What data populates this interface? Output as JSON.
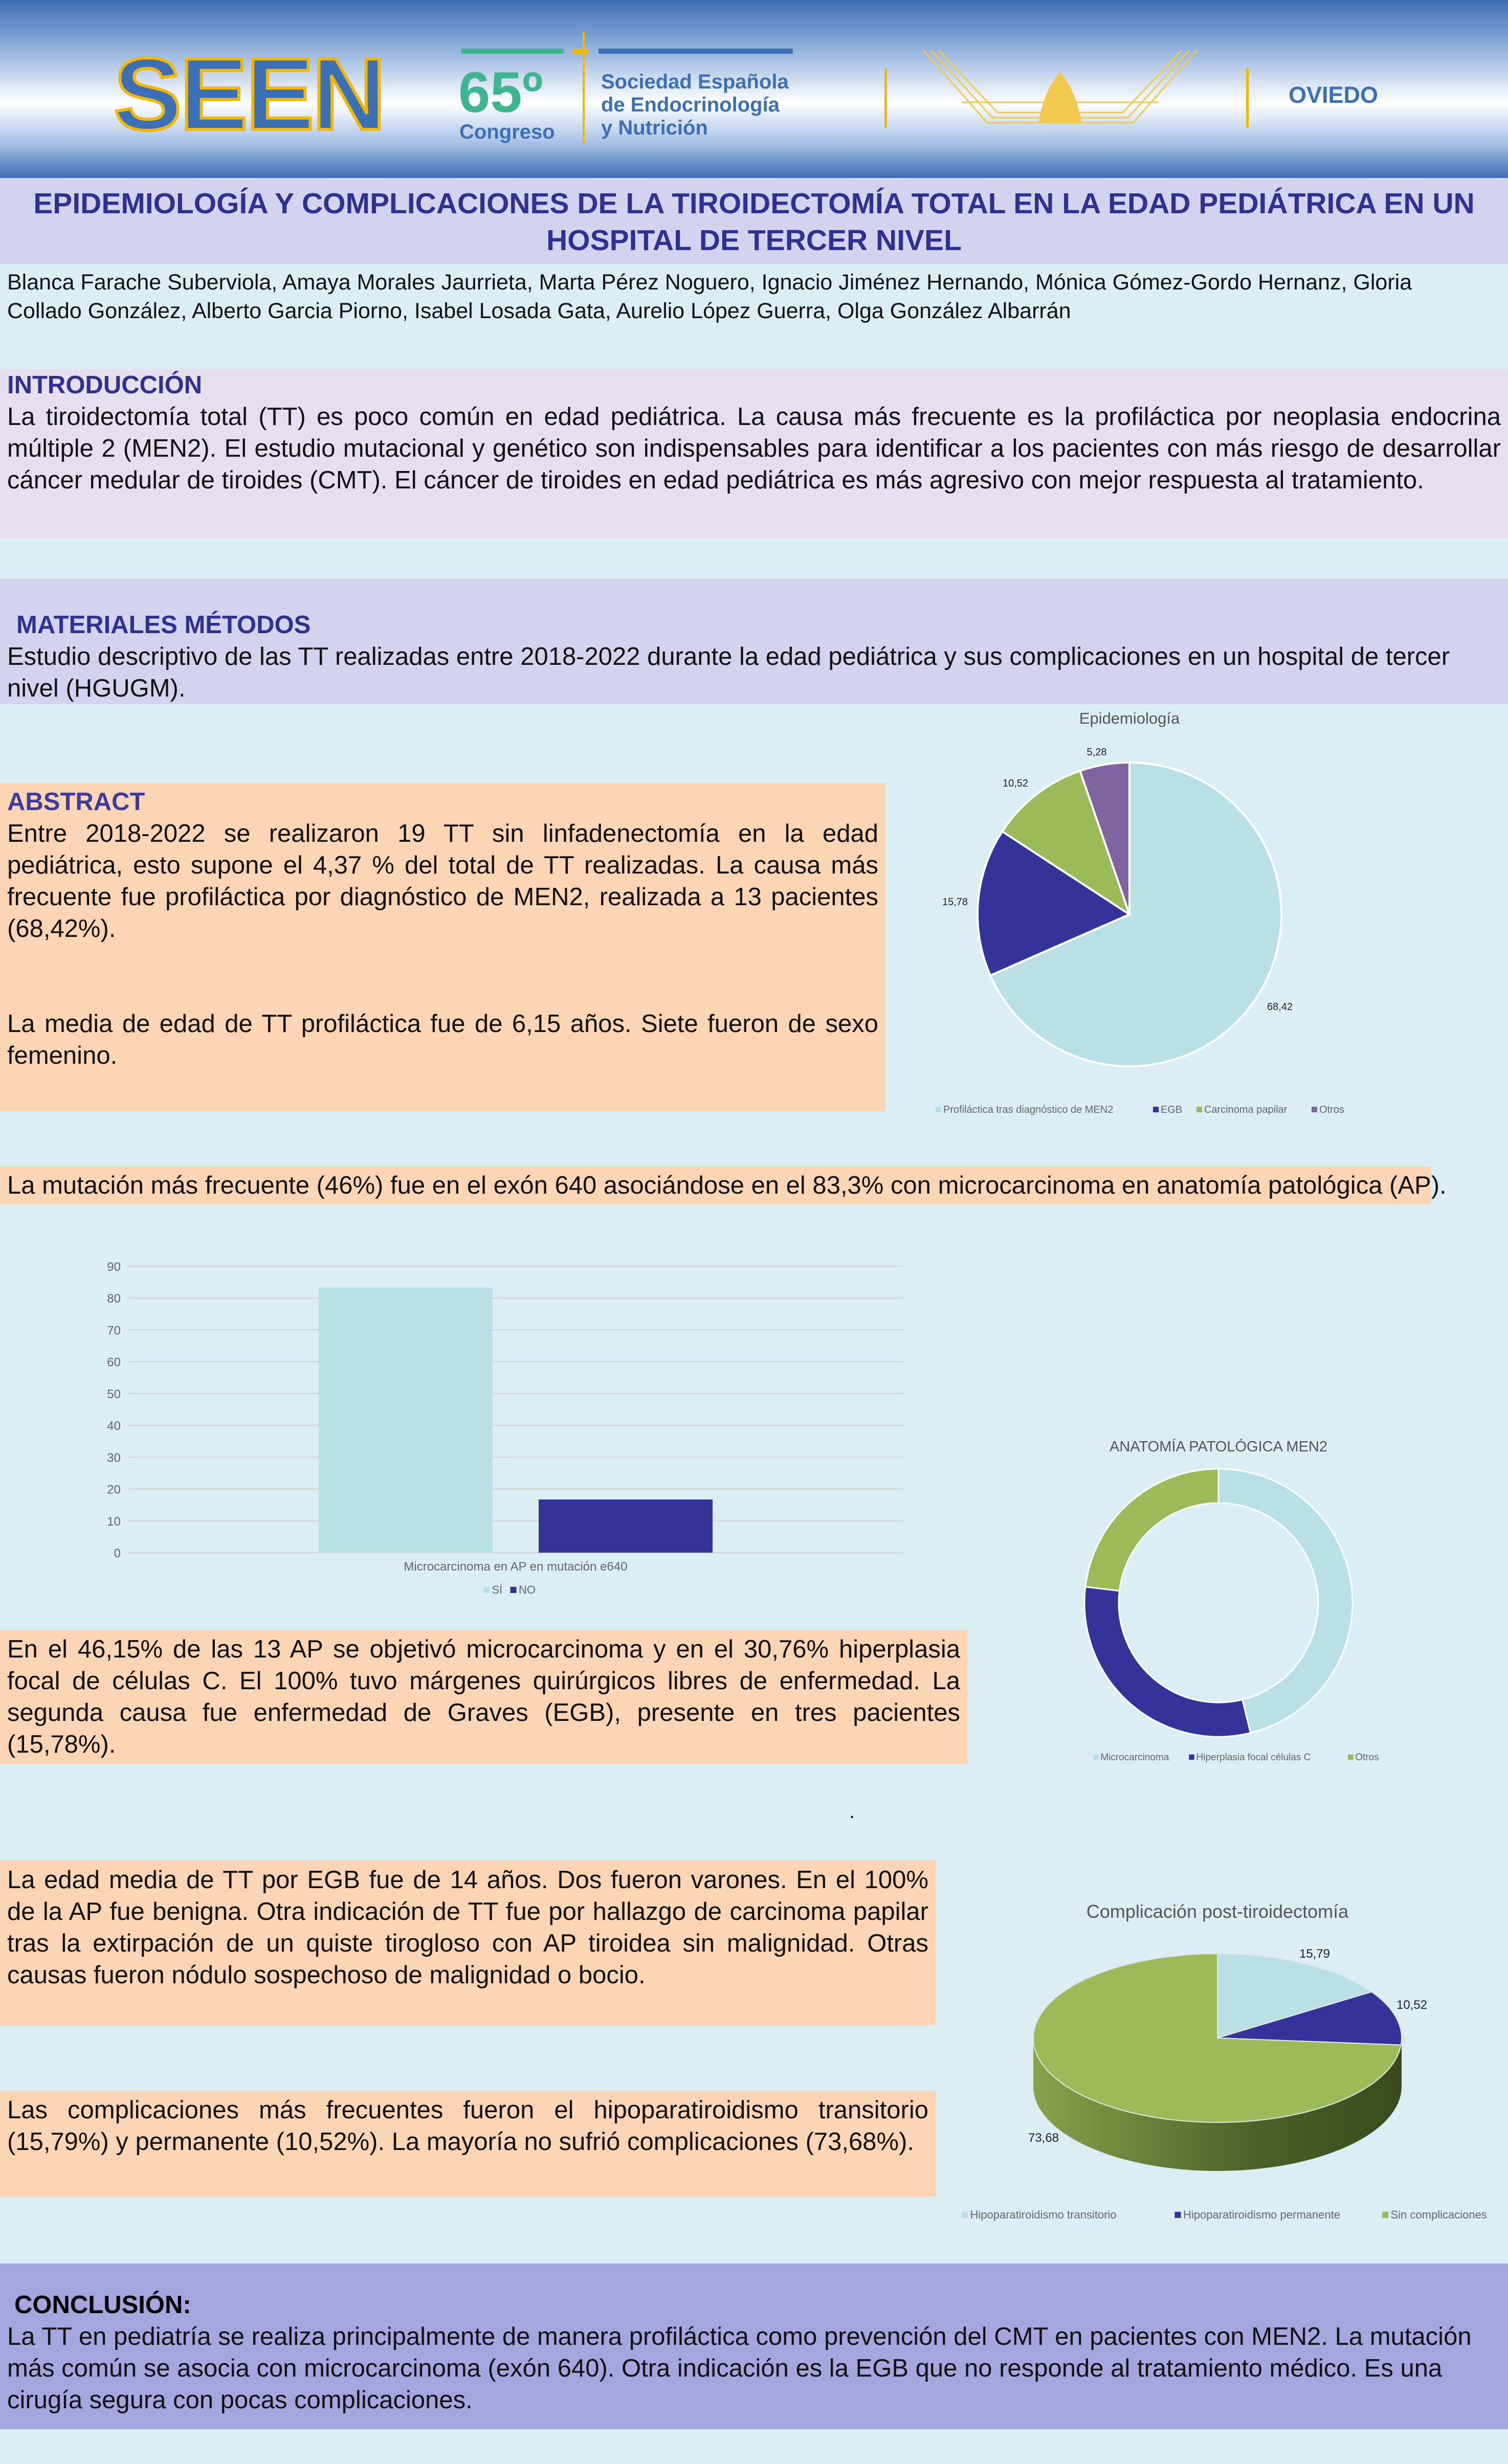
{
  "header": {
    "logo_seen": "SEEN",
    "congress_number": "65º",
    "congress_label": "Congreso",
    "society_lines": [
      "Sociedad Española",
      "de Endocrinología",
      "y Nutrición"
    ],
    "city": "OVIEDO"
  },
  "title": "EPIDEMIOLOGÍA Y COMPLICACIONES DE LA TIROIDECTOMÍA TOTAL EN LA EDAD PEDIÁTRICA EN UN HOSPITAL DE TERCER NIVEL",
  "authors": "Blanca Farache Suberviola, Amaya Morales Jaurrieta, Marta Pérez Noguero, Ignacio Jiménez Hernando, Mónica Gómez-Gordo Hernanz, Gloria Collado González, Alberto Garcia Piorno, Isabel Losada Gata, Aurelio López Guerra, Olga González Albarrán",
  "intro": {
    "heading": "INTRODUCCIÓN",
    "text": "La tiroidectomía total (TT) es poco común en edad pediátrica. La causa más frecuente es la profiláctica por neoplasia endocrina múltiple 2 (MEN2). El estudio mutacional y genético son indispensables para identificar a los pacientes con más riesgo de desarrollar cáncer medular de tiroides (CMT). El cáncer de tiroides en edad pediátrica es más agresivo con mejor respuesta al tratamiento."
  },
  "methods": {
    "heading": "MATERIALES MÉTODOS",
    "text": "Estudio descriptivo de las TT realizadas entre 2018-2022 durante la edad pediátrica y sus complicaciones en un hospital de tercer nivel (HGUGM)."
  },
  "abstract": {
    "heading": "ABSTRACT",
    "p1": "Entre 2018-2022 se realizaron 19 TT sin linfadenectomía en la edad pediátrica, esto supone el 4,37 % del total de TT realizadas. La causa más frecuente fue profiláctica por diagnóstico de MEN2, realizada a 13 pacientes (68,42%).",
    "p2": "La media de edad de TT profiláctica fue de 6,15 años. Siete fueron de sexo femenino."
  },
  "mutation_text": "La mutación más frecuente (46%) fue en el exón 640 asociándose en el 83,3% con microcarcinoma en anatomía patológica (AP).",
  "ap_text": "En el 46,15% de las 13 AP se objetivó microcarcinoma y en el 30,76% hiperplasia focal de células C. El 100% tuvo márgenes quirúrgicos libres de enfermedad. La segunda causa fue enfermedad de Graves (EGB), presente en tres pacientes (15,78%).",
  "stray_dot": ".",
  "egb_text": "La edad media de TT por EGB fue de 14 años. Dos fueron varones. En el 100% de la AP fue benigna. Otra indicación de TT fue por hallazgo de carcinoma papilar tras la extirpación de un quiste tirogloso con AP tiroidea sin malignidad. Otras causas fueron nódulo sospechoso de malignidad o bocio.",
  "complications_text": "Las complicaciones más frecuentes fueron el hipoparatiroidismo transitorio (15,79%) y permanente (10,52%). La mayoría no sufrió complicaciones (73,68%).",
  "conclusion": {
    "heading": "CONCLUSIÓN:",
    "text": "La TT en pediatría se realiza principalmente de manera profiláctica como prevención del CMT en pacientes con MEN2. La mutación más común se asocia con microcarcinoma (exón 640). Otra indicación es la EGB que no responde al tratamiento médico. Es una cirugía segura con pocas complicaciones."
  },
  "chart_data": [
    {
      "type": "pie",
      "title": "Epidemiología",
      "categories": [
        "Profiláctica tras diagnóstico de MEN2",
        "EGB",
        "Carcinoma papilar",
        "Otros"
      ],
      "values": [
        68.42,
        15.78,
        10.52,
        5.28
      ],
      "data_labels": [
        "68,42",
        "15,78",
        "10,52",
        "5,28"
      ],
      "colors": [
        "#b9e0e4",
        "#333399",
        "#9bbb59",
        "#8064a2"
      ],
      "legend_position": "bottom"
    },
    {
      "type": "bar",
      "title": "",
      "categories": [
        "Microcarcinoma en AP en mutación e640"
      ],
      "series": [
        {
          "name": "SÍ",
          "values": [
            83.3
          ],
          "color": "#b9e0e4"
        },
        {
          "name": "NO",
          "values": [
            16.7
          ],
          "color": "#333399"
        }
      ],
      "ylim": [
        0,
        90
      ],
      "yticks": [
        0,
        10,
        20,
        30,
        40,
        50,
        60,
        70,
        80,
        90
      ],
      "grid": true,
      "legend_position": "bottom"
    },
    {
      "type": "pie",
      "subtype": "doughnut",
      "title": "ANATOMÍA PATOLÓGICA MEN2",
      "categories": [
        "Microcarcinoma",
        "Hiperplasia focal células C",
        "Otros"
      ],
      "values": [
        46.15,
        30.76,
        23.09
      ],
      "colors": [
        "#b9e0e4",
        "#333399",
        "#9bbb59"
      ],
      "legend_position": "bottom"
    },
    {
      "type": "pie",
      "subtype": "3d",
      "title": "Complicación post-tiroidectomía",
      "categories": [
        "Hipoparatiroidismo transitorio",
        "Hipoparatiroidismo permanente",
        "Sin complicaciones"
      ],
      "values": [
        15.79,
        10.52,
        73.68
      ],
      "data_labels": [
        "15,79",
        "10,52",
        "73,68"
      ],
      "colors": [
        "#b9e0e4",
        "#333399",
        "#9bbb59"
      ],
      "legend_position": "bottom"
    }
  ]
}
